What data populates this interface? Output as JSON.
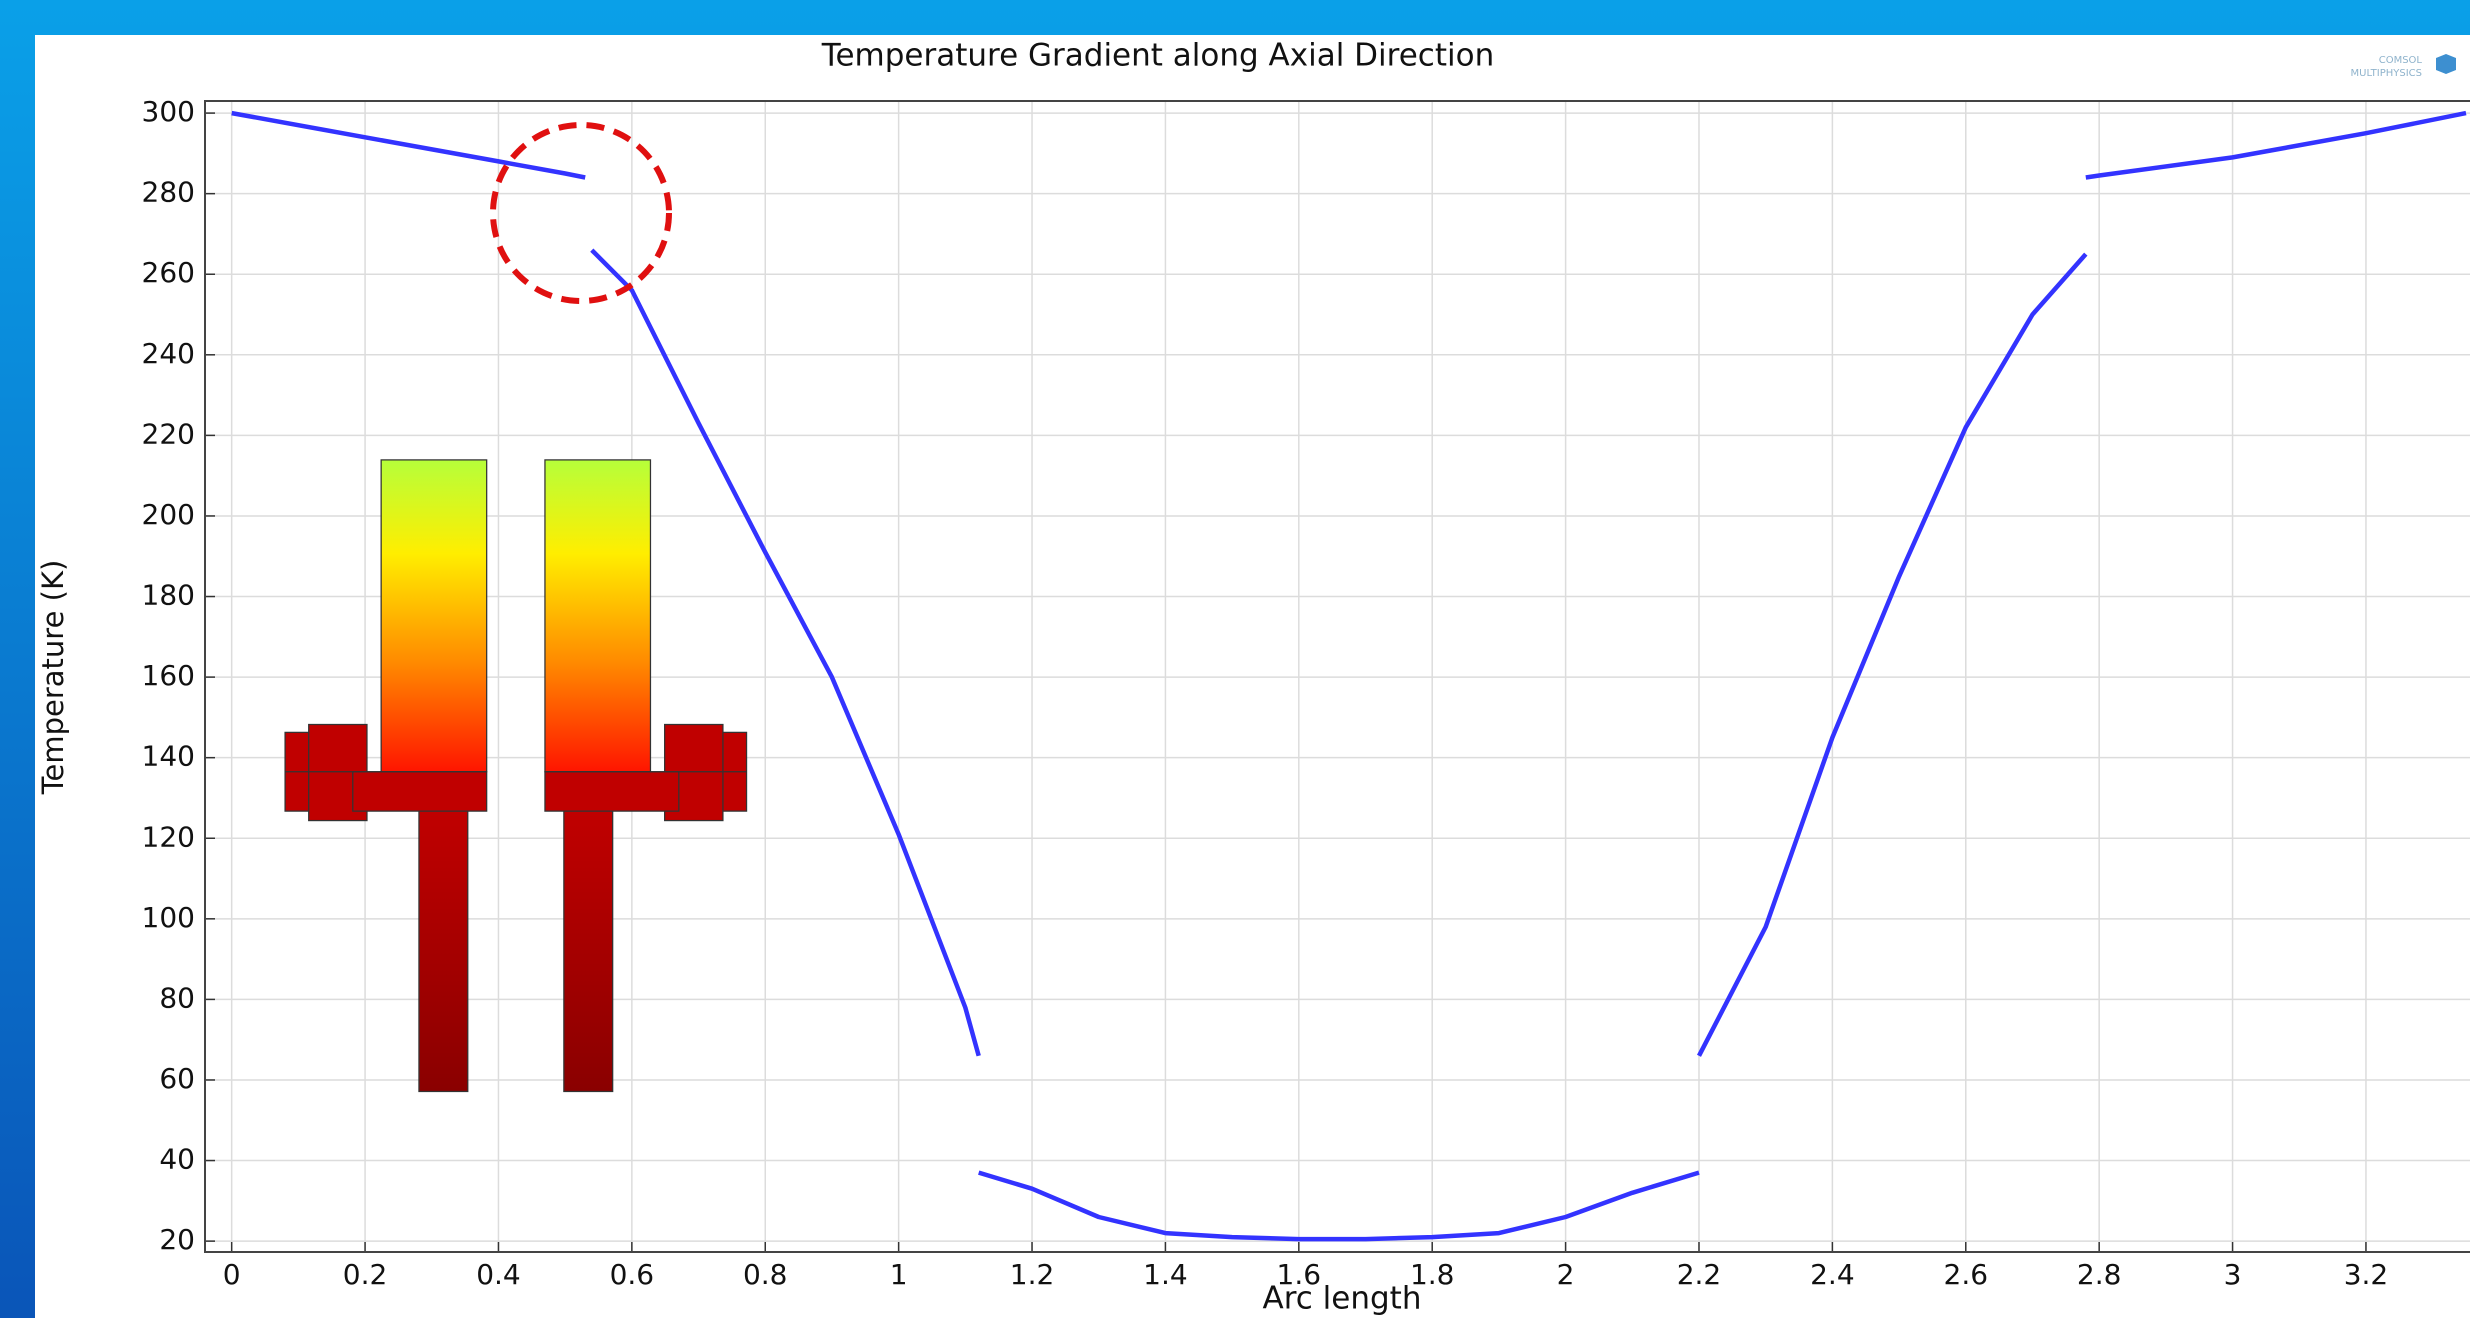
{
  "chart_data": {
    "type": "line",
    "title": "Temperature Gradient along Axial Direction",
    "xlabel": "Arc length",
    "ylabel": "Temperature (K)",
    "logo": [
      "COMSOL",
      "MULTIPHYSICS"
    ],
    "x": [
      0,
      0.2,
      0.4,
      0.5,
      0.53,
      null,
      0.54,
      0.6,
      0.7,
      0.8,
      0.9,
      1.0,
      1.1,
      1.12,
      null,
      1.12,
      1.2,
      1.3,
      1.4,
      1.5,
      1.6,
      1.7,
      1.8,
      1.9,
      2.0,
      2.1,
      2.2,
      null,
      2.2,
      2.3,
      2.4,
      2.5,
      2.6,
      2.7,
      2.78,
      null,
      2.78,
      2.8,
      3.0,
      3.2,
      3.35
    ],
    "series": [
      {
        "color": "#3333ff",
        "values": [
          300,
          294,
          288,
          285,
          284,
          null,
          266,
          256,
          223,
          191,
          160,
          121,
          78,
          66,
          null,
          37,
          33,
          26,
          22,
          21,
          20.5,
          20.5,
          21,
          22,
          26,
          32,
          37,
          null,
          66,
          98,
          145,
          185,
          222,
          250,
          265,
          null,
          284,
          284.5,
          289,
          295,
          300
        ]
      }
    ],
    "xlim": [
      -0.04,
      3.356
    ],
    "ylim": [
      17.3,
      303
    ],
    "xticks": [
      0,
      0.2,
      0.4,
      0.6,
      0.8,
      1,
      1.2,
      1.4,
      1.6,
      1.8,
      2,
      2.2,
      2.4,
      2.6,
      2.8,
      3,
      3.2
    ],
    "yticks": [
      20,
      40,
      60,
      80,
      100,
      120,
      140,
      160,
      180,
      200,
      220,
      240,
      260,
      280,
      300
    ],
    "grid": true
  }
}
